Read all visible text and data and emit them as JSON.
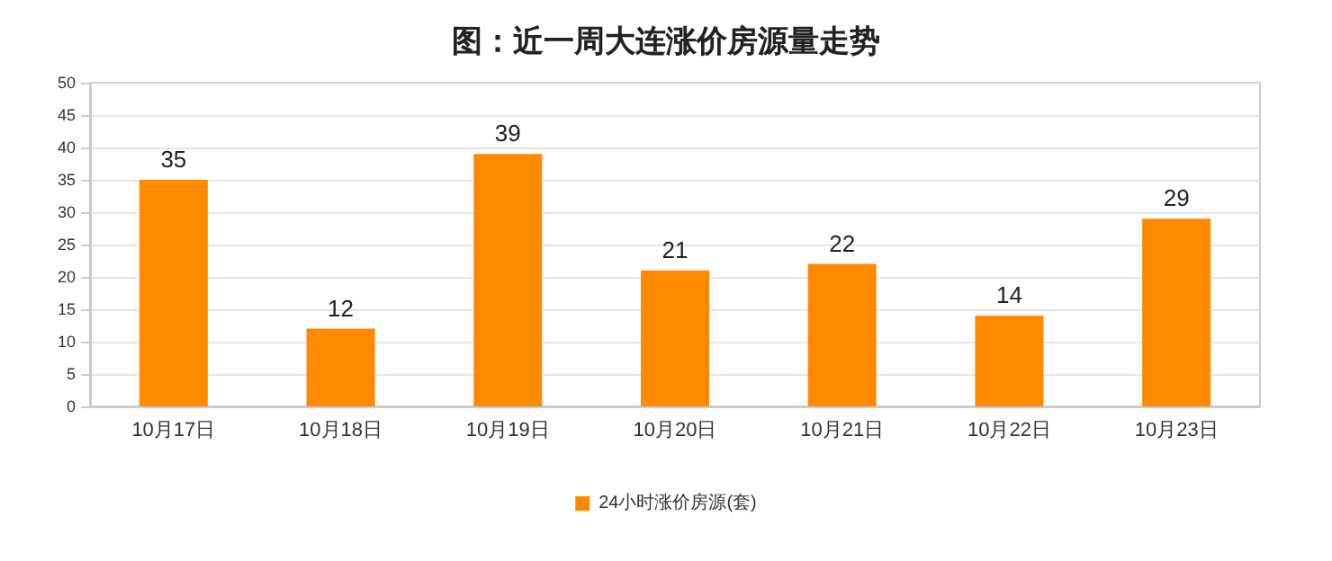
{
  "chart_data": {
    "type": "bar",
    "title": "图：近一周大连涨价房源量走势",
    "categories": [
      "10月17日",
      "10月18日",
      "10月19日",
      "10月20日",
      "10月21日",
      "10月22日",
      "10月23日"
    ],
    "series": [
      {
        "name": "24小时涨价房源(套)",
        "color": "#ff8a00",
        "values": [
          35,
          12,
          39,
          21,
          22,
          14,
          29
        ]
      }
    ],
    "ylim": [
      0,
      50
    ],
    "yticks": [
      0,
      5,
      10,
      15,
      20,
      25,
      30,
      35,
      40,
      45,
      50
    ],
    "grid": "y",
    "legend": "bottom",
    "data_labels": true
  }
}
